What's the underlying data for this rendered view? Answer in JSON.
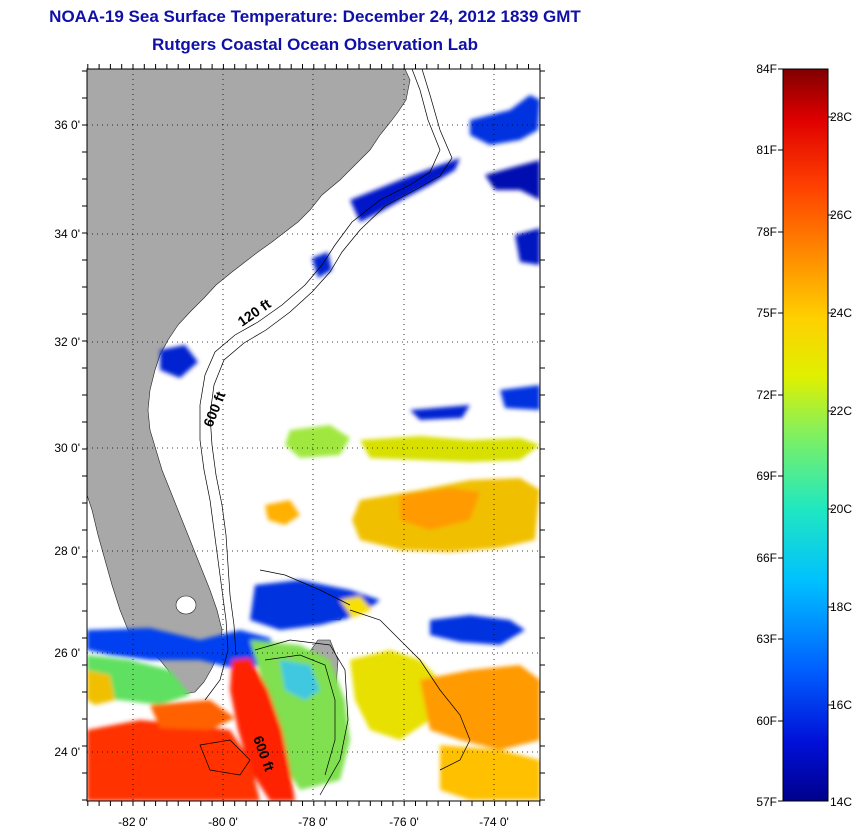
{
  "title": {
    "line1": "NOAA-19 Sea Surface Temperature:  December 24, 2012 1839 GMT",
    "line2": "Rutgers Coastal Ocean Observation Lab"
  },
  "map": {
    "lat_labels": [
      "36 0'",
      "34 0'",
      "32 0'",
      "30 0'",
      "28 0'",
      "26 0'",
      "24 0'"
    ],
    "lon_labels": [
      "-82 0'",
      "-80 0'",
      "-78 0'",
      "-76 0'",
      "-74 0'"
    ],
    "contour_labels": [
      "120 ft",
      "600 ft",
      "600 ft"
    ],
    "land_color": "#a8a8a8"
  },
  "colorbar": {
    "f_labels": [
      "84F",
      "81F",
      "78F",
      "75F",
      "72F",
      "69F",
      "66F",
      "63F",
      "60F",
      "57F"
    ],
    "c_labels": [
      "28C",
      "26C",
      "24C",
      "22C",
      "20C",
      "18C",
      "16C",
      "14C"
    ],
    "min_f": 57,
    "max_f": 84
  }
}
